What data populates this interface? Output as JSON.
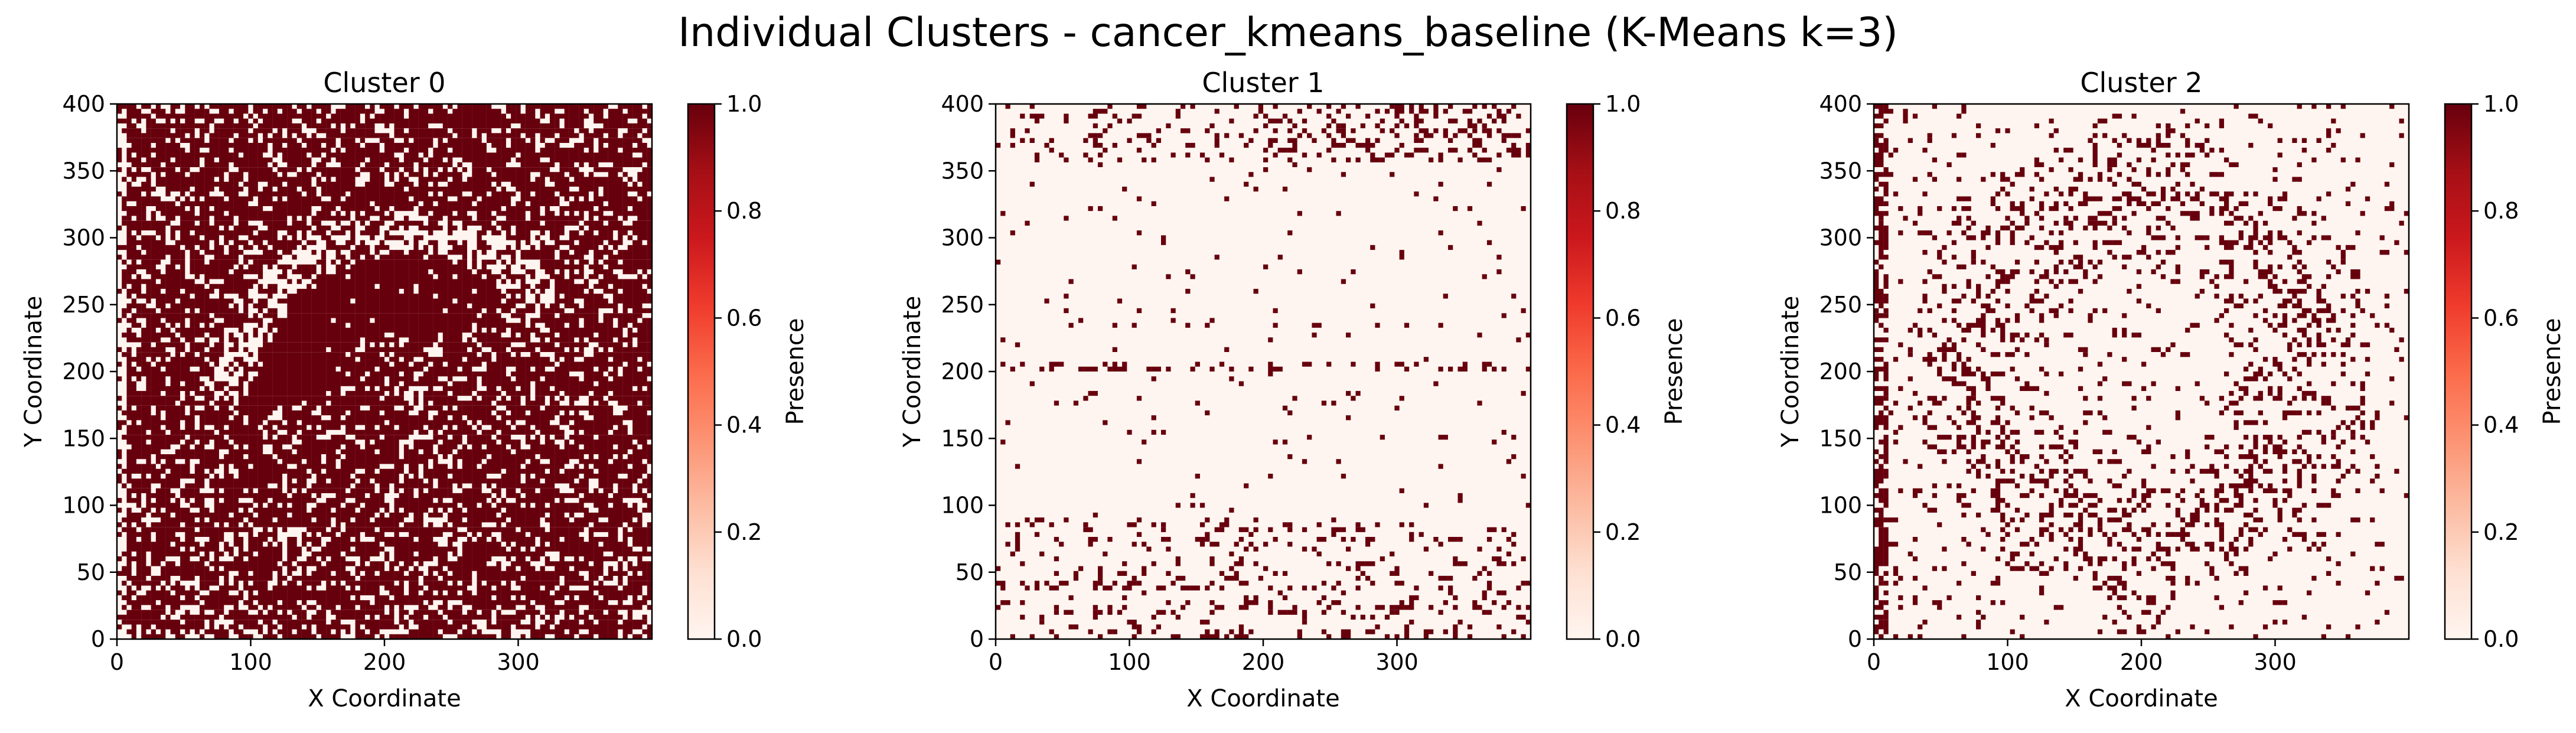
{
  "figure": {
    "title": "Individual Clusters - cancer_kmeans_baseline (K-Means k=3)"
  },
  "colors": {
    "cmap": "Reds",
    "low": "#fff5f0",
    "high": "#67000d",
    "stops": [
      "#fff5f0",
      "#fee0d2",
      "#fcbba1",
      "#fc9272",
      "#fb6a4a",
      "#ef3b2c",
      "#cb181d",
      "#a50f15",
      "#67000d"
    ]
  },
  "chart_data": [
    {
      "type": "heatmap",
      "title": "Cluster 0",
      "xlabel": "X Coordinate",
      "ylabel": "Y Coordinate",
      "xlim": [
        0,
        400
      ],
      "ylim": [
        0,
        400
      ],
      "xticks": [
        0,
        100,
        200,
        300
      ],
      "yticks": [
        0,
        50,
        100,
        150,
        200,
        250,
        300,
        350,
        400
      ],
      "colorbar": {
        "label": "Presence",
        "range": [
          0.0,
          1.0
        ],
        "ticks": [
          "0.0",
          "0.2",
          "0.4",
          "0.6",
          "0.8",
          "1.0"
        ]
      },
      "values": "binary presence mask (0 or 1); dense (~80% of pixels = 1), arc-shaped feature near x 100-260, y 150-330"
    },
    {
      "type": "heatmap",
      "title": "Cluster 1",
      "xlabel": "X Coordinate",
      "ylabel": "Y Coordinate",
      "xlim": [
        0,
        400
      ],
      "ylim": [
        0,
        400
      ],
      "xticks": [
        0,
        100,
        200,
        300
      ],
      "yticks": [
        0,
        50,
        100,
        150,
        200,
        250,
        300,
        350,
        400
      ],
      "colorbar": {
        "label": "Presence",
        "range": [
          0.0,
          1.0
        ],
        "ticks": [
          "0.0",
          "0.2",
          "0.4",
          "0.6",
          "0.8",
          "1.0"
        ]
      },
      "values": "binary presence mask (0 or 1); sparse, concentrated in horizontal bands near y 0-90, y ~205 and y 360-400"
    },
    {
      "type": "heatmap",
      "title": "Cluster 2",
      "xlabel": "X Coordinate",
      "ylabel": "Y Coordinate",
      "xlim": [
        0,
        400
      ],
      "ylim": [
        0,
        400
      ],
      "xticks": [
        0,
        100,
        200,
        300
      ],
      "yticks": [
        0,
        50,
        100,
        150,
        200,
        250,
        300,
        350,
        400
      ],
      "colorbar": {
        "label": "Presence",
        "range": [
          0.0,
          1.0
        ],
        "ticks": [
          "0.0",
          "0.2",
          "0.4",
          "0.6",
          "0.8",
          "1.0"
        ]
      },
      "values": "binary presence mask (0 or 1); moderate density ring around center (≈200,210) with radius ≈140"
    }
  ]
}
